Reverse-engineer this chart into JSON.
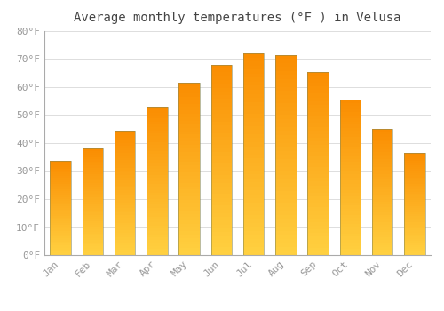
{
  "title": "Average monthly temperatures (°F ) in Velusa",
  "months": [
    "Jan",
    "Feb",
    "Mar",
    "Apr",
    "May",
    "Jun",
    "Jul",
    "Aug",
    "Sep",
    "Oct",
    "Nov",
    "Dec"
  ],
  "values": [
    33.5,
    38.0,
    44.5,
    53.0,
    61.5,
    68.0,
    72.0,
    71.5,
    65.5,
    55.5,
    45.0,
    36.5
  ],
  "bar_color_main": "#FFA500",
  "bar_color_light": "#FFD060",
  "background_color": "#FFFFFF",
  "grid_color": "#DDDDDD",
  "text_color": "#999999",
  "title_color": "#444444",
  "ylim": [
    0,
    80
  ],
  "yticks": [
    0,
    10,
    20,
    30,
    40,
    50,
    60,
    70,
    80
  ],
  "title_fontsize": 10,
  "tick_fontsize": 8
}
